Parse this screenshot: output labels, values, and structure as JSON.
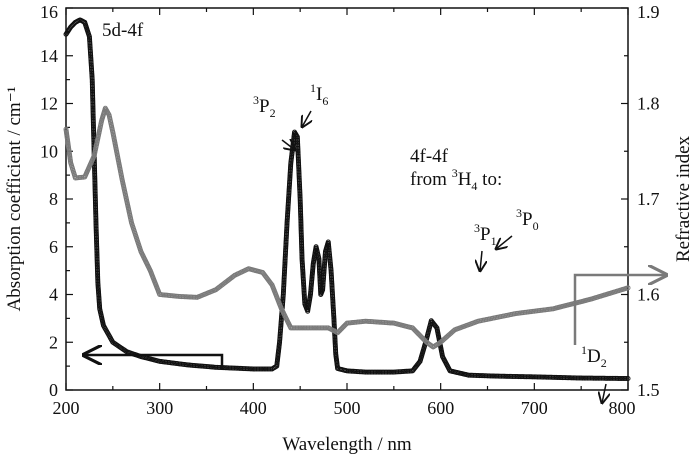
{
  "chart_data": {
    "type": "scatter",
    "title": "",
    "xlabel": "Wavelength / nm",
    "ylabel_left": "Absorption coefficient / cm⁻¹",
    "ylabel_right": "Refractive index",
    "xlim": [
      200,
      800
    ],
    "ylim_left": [
      0,
      16
    ],
    "ylim_right": [
      1.5,
      1.9
    ],
    "x_ticks": [
      "200",
      "300",
      "400",
      "500",
      "600",
      "700",
      "800"
    ],
    "y_left_ticks": [
      "0",
      "2",
      "4",
      "6",
      "8",
      "10",
      "12",
      "14",
      "16"
    ],
    "y_right_ticks": [
      "1.5",
      "1.6",
      "1.7",
      "1.8",
      "1.9"
    ],
    "grid": false,
    "series": [
      {
        "axis": "left",
        "color": "#111111",
        "marker": "open-circle",
        "points": [
          [
            200,
            14.9
          ],
          [
            205,
            15.2
          ],
          [
            210,
            15.4
          ],
          [
            215,
            15.5
          ],
          [
            220,
            15.4
          ],
          [
            225,
            14.8
          ],
          [
            228,
            13.0
          ],
          [
            230,
            10.0
          ],
          [
            232,
            7.0
          ],
          [
            234,
            4.5
          ],
          [
            236,
            3.4
          ],
          [
            240,
            2.7
          ],
          [
            250,
            2.0
          ],
          [
            265,
            1.6
          ],
          [
            280,
            1.4
          ],
          [
            300,
            1.2
          ],
          [
            330,
            1.05
          ],
          [
            360,
            0.95
          ],
          [
            400,
            0.88
          ],
          [
            420,
            0.88
          ],
          [
            425,
            1.0
          ],
          [
            428,
            2.0
          ],
          [
            432,
            4.0
          ],
          [
            436,
            7.0
          ],
          [
            440,
            9.5
          ],
          [
            444,
            10.8
          ],
          [
            447,
            10.6
          ],
          [
            450,
            8.0
          ],
          [
            452,
            5.5
          ],
          [
            455,
            3.6
          ],
          [
            458,
            3.3
          ],
          [
            461,
            4.0
          ],
          [
            464,
            5.3
          ],
          [
            467,
            6.0
          ],
          [
            470,
            5.5
          ],
          [
            472,
            4.0
          ],
          [
            474,
            4.2
          ],
          [
            477,
            5.8
          ],
          [
            480,
            6.2
          ],
          [
            483,
            5.0
          ],
          [
            486,
            3.0
          ],
          [
            488,
            1.5
          ],
          [
            490,
            0.9
          ],
          [
            500,
            0.8
          ],
          [
            520,
            0.75
          ],
          [
            550,
            0.75
          ],
          [
            570,
            0.8
          ],
          [
            578,
            1.2
          ],
          [
            584,
            2.0
          ],
          [
            590,
            2.9
          ],
          [
            596,
            2.6
          ],
          [
            602,
            1.4
          ],
          [
            610,
            0.8
          ],
          [
            630,
            0.62
          ],
          [
            660,
            0.58
          ],
          [
            700,
            0.55
          ],
          [
            750,
            0.5
          ],
          [
            800,
            0.48
          ]
        ]
      },
      {
        "axis": "right",
        "color": "#7a7a7a",
        "marker": "open-circle",
        "points": [
          [
            200,
            1.773
          ],
          [
            205,
            1.738
          ],
          [
            210,
            1.722
          ],
          [
            220,
            1.723
          ],
          [
            230,
            1.745
          ],
          [
            238,
            1.782
          ],
          [
            242,
            1.795
          ],
          [
            246,
            1.788
          ],
          [
            250,
            1.77
          ],
          [
            260,
            1.72
          ],
          [
            270,
            1.675
          ],
          [
            280,
            1.645
          ],
          [
            290,
            1.625
          ],
          [
            300,
            1.6
          ],
          [
            320,
            1.598
          ],
          [
            340,
            1.597
          ],
          [
            360,
            1.605
          ],
          [
            380,
            1.62
          ],
          [
            395,
            1.627
          ],
          [
            410,
            1.623
          ],
          [
            420,
            1.61
          ],
          [
            430,
            1.585
          ],
          [
            440,
            1.565
          ],
          [
            460,
            1.565
          ],
          [
            480,
            1.565
          ],
          [
            490,
            1.56
          ],
          [
            500,
            1.57
          ],
          [
            520,
            1.572
          ],
          [
            550,
            1.57
          ],
          [
            570,
            1.565
          ],
          [
            585,
            1.55
          ],
          [
            592,
            1.545
          ],
          [
            600,
            1.55
          ],
          [
            615,
            1.563
          ],
          [
            640,
            1.572
          ],
          [
            680,
            1.58
          ],
          [
            720,
            1.585
          ],
          [
            760,
            1.595
          ],
          [
            800,
            1.607
          ]
        ]
      }
    ],
    "annotations": {
      "band_5d4f": "5d-4f",
      "band_4f4f_line1": "4f-4f",
      "band_4f4f_line2_pre": "from ",
      "band_4f4f_line2_sup": "3",
      "band_4f4f_line2_post": "H",
      "band_4f4f_line2_sub": "4",
      "band_4f4f_line2_end": " to:",
      "p2": {
        "sup": "3",
        "letter": "P",
        "sub": "2"
      },
      "i6": {
        "sup": "1",
        "letter": "I",
        "sub": "6"
      },
      "p1": {
        "sup": "3",
        "letter": "P",
        "sub": "1"
      },
      "p0": {
        "sup": "3",
        "letter": "P",
        "sub": "0"
      },
      "d2": {
        "sup": "1",
        "letter": "D",
        "sub": "2"
      }
    }
  }
}
